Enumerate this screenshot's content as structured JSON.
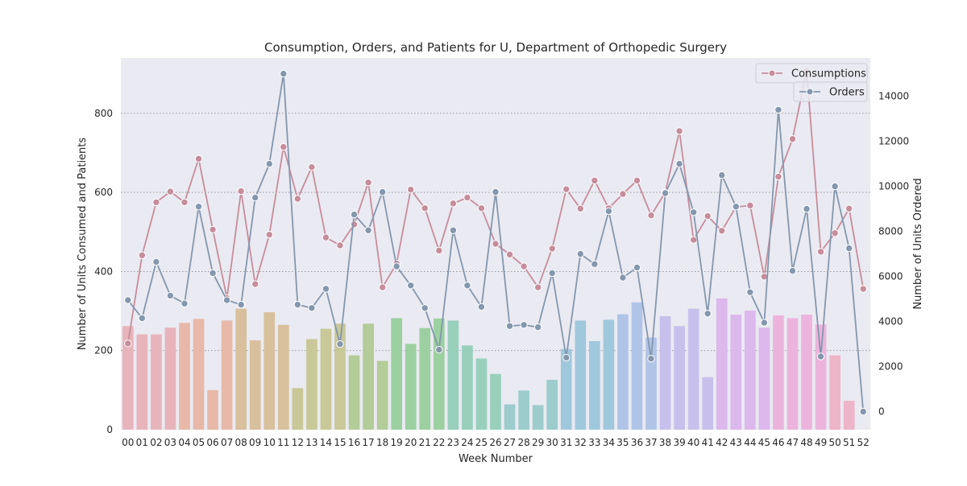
{
  "chart_data": {
    "type": "bar+line",
    "title": "Consumption, Orders, and Patients for U, Department of Orthopedic Surgery",
    "xlabel": "Week Number",
    "ylabel_left": "Number of Units Consumed and Patients",
    "ylabel_right": "Number of Units Ordered",
    "categories": [
      "00",
      "01",
      "02",
      "03",
      "04",
      "05",
      "06",
      "07",
      "08",
      "09",
      "10",
      "11",
      "12",
      "13",
      "14",
      "15",
      "16",
      "17",
      "18",
      "19",
      "20",
      "21",
      "22",
      "23",
      "24",
      "25",
      "26",
      "27",
      "28",
      "29",
      "30",
      "31",
      "32",
      "33",
      "34",
      "35",
      "36",
      "37",
      "38",
      "39",
      "40",
      "41",
      "42",
      "43",
      "44",
      "45",
      "46",
      "47",
      "48",
      "49",
      "50",
      "51",
      "52"
    ],
    "ylim_left": [
      0,
      940
    ],
    "yticks_left": [
      0,
      200,
      400,
      600,
      800
    ],
    "ylim_right": [
      -800,
      15700
    ],
    "yticks_right": [
      0,
      2000,
      4000,
      6000,
      8000,
      10000,
      12000,
      14000
    ],
    "grid": "horizontal dotted",
    "legend_placement": "top-right",
    "patients": [
      262,
      241,
      241,
      258,
      270,
      280,
      100,
      276,
      306,
      226,
      297,
      265,
      105,
      229,
      255,
      268,
      188,
      268,
      174,
      282,
      217,
      257,
      281,
      276,
      213,
      180,
      141,
      64,
      99,
      62,
      126,
      204,
      276,
      224,
      278,
      292,
      322,
      233,
      287,
      262,
      306,
      133,
      332,
      291,
      301,
      258,
      289,
      282,
      291,
      266,
      188,
      73,
      0
    ],
    "series": [
      {
        "name": "Consumptions",
        "axis": "left",
        "color": "#c68d9c",
        "values": [
          218,
          441,
          575,
          602,
          575,
          685,
          506,
          333,
          603,
          368,
          493,
          715,
          584,
          664,
          486,
          466,
          519,
          625,
          360,
          420,
          607,
          560,
          453,
          572,
          587,
          560,
          470,
          443,
          413,
          360,
          458,
          608,
          559,
          630,
          560,
          596,
          630,
          542,
          600,
          755,
          480,
          540,
          503,
          563,
          567,
          387,
          640,
          735,
          908,
          450,
          497,
          559,
          356
        ]
      },
      {
        "name": "Orders",
        "axis": "right",
        "color": "#8497ad",
        "values": [
          4950,
          4150,
          6650,
          5150,
          4800,
          9100,
          6150,
          4950,
          4750,
          9500,
          11000,
          15000,
          4750,
          4600,
          5450,
          3000,
          8750,
          8050,
          9750,
          6450,
          5600,
          4600,
          2750,
          8050,
          5600,
          4650,
          9750,
          3800,
          3850,
          3750,
          6150,
          2400,
          7000,
          6550,
          8900,
          5950,
          6400,
          2350,
          9700,
          11000,
          8850,
          4350,
          10500,
          9100,
          5300,
          3950,
          13400,
          6250,
          9000,
          2450,
          10000,
          7250,
          0
        ]
      }
    ],
    "bar_palette": [
      "#e8b4bc",
      "#e8b8a8",
      "#d8c09c",
      "#c8c898",
      "#b4cc98",
      "#9cd0a0",
      "#98d0bc",
      "#9ccccc",
      "#a0c8dc",
      "#b0c4e8",
      "#c8c0ec",
      "#dcb8ec",
      "#ecb4dc",
      "#eeb4c8"
    ]
  }
}
